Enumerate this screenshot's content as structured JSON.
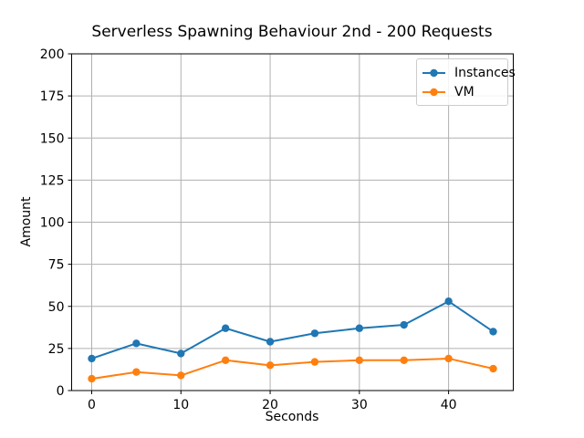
{
  "chart_data": {
    "type": "line",
    "title": "Serverless Spawning Behaviour 2nd - 200 Requests",
    "xlabel": "Seconds",
    "ylabel": "Amount",
    "x": [
      0,
      5,
      10,
      15,
      20,
      25,
      30,
      35,
      40,
      45
    ],
    "series": [
      {
        "name": "Instances",
        "color": "#1f77b4",
        "values": [
          19,
          28,
          22,
          37,
          29,
          34,
          37,
          39,
          53,
          35
        ]
      },
      {
        "name": "VM",
        "color": "#ff7f0e",
        "values": [
          7,
          11,
          9,
          18,
          15,
          17,
          18,
          18,
          19,
          13
        ]
      }
    ],
    "xlim": [
      -2.25,
      47.25
    ],
    "ylim": [
      0,
      200
    ],
    "xticks": [
      0,
      10,
      20,
      30,
      40
    ],
    "yticks": [
      0,
      25,
      50,
      75,
      100,
      125,
      150,
      175,
      200
    ],
    "grid": true,
    "legend_position": "upper right",
    "marker": "o",
    "colors": {
      "grid": "#b0b0b0",
      "spine": "#000000",
      "background": "#ffffff",
      "text": "#000000"
    }
  }
}
